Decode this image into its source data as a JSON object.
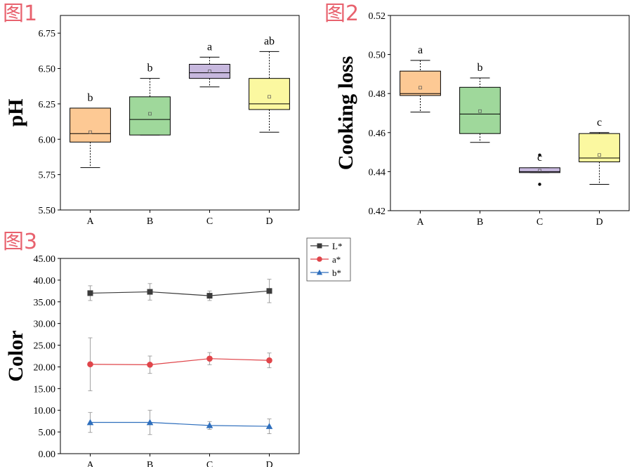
{
  "figure_labels": [
    "图1",
    "图2",
    "图3"
  ],
  "chart_data": [
    {
      "type": "box",
      "ylabel": "pH",
      "categories": [
        "A",
        "B",
        "C",
        "D"
      ],
      "ylim": [
        5.5,
        6.875
      ],
      "yticks": [
        "5.50",
        "5.75",
        "6.00",
        "6.25",
        "6.50",
        "6.75"
      ],
      "boxes": [
        {
          "category": "A",
          "min": 5.8,
          "q1": 5.98,
          "median": 6.04,
          "q3": 6.22,
          "max": 6.22,
          "mean": 6.05,
          "letter": "b",
          "color": "#fdc994"
        },
        {
          "category": "B",
          "min": 6.03,
          "q1": 6.03,
          "median": 6.14,
          "q3": 6.3,
          "max": 6.43,
          "mean": 6.18,
          "letter": "b",
          "color": "#9fd89b"
        },
        {
          "category": "C",
          "min": 6.37,
          "q1": 6.43,
          "median": 6.47,
          "q3": 6.53,
          "max": 6.58,
          "mean": 6.48,
          "letter": "a",
          "color": "#c7b8de"
        },
        {
          "category": "D",
          "min": 6.05,
          "q1": 6.21,
          "median": 6.25,
          "q3": 6.43,
          "max": 6.62,
          "mean": 6.3,
          "letter": "ab",
          "color": "#fbf8a0"
        }
      ],
      "outliers": []
    },
    {
      "type": "box",
      "ylabel": "Cooking loss",
      "categories": [
        "A",
        "B",
        "C",
        "D"
      ],
      "ylim": [
        0.42,
        0.52
      ],
      "yticks": [
        "0.42",
        "0.44",
        "0.46",
        "0.48",
        "0.50",
        "0.52"
      ],
      "boxes": [
        {
          "category": "A",
          "min": 0.4705,
          "q1": 0.479,
          "median": 0.48,
          "q3": 0.4915,
          "max": 0.497,
          "mean": 0.483,
          "letter": "a",
          "color": "#fdc994"
        },
        {
          "category": "B",
          "min": 0.455,
          "q1": 0.4595,
          "median": 0.4695,
          "q3": 0.4832,
          "max": 0.488,
          "mean": 0.471,
          "letter": "b",
          "color": "#9fd89b"
        },
        {
          "category": "C",
          "min": 0.4395,
          "q1": 0.4395,
          "median": 0.44,
          "q3": 0.442,
          "max": 0.442,
          "mean": 0.4405,
          "letter": "c",
          "color": "#c7b8de"
        },
        {
          "category": "D",
          "min": 0.4335,
          "q1": 0.445,
          "median": 0.447,
          "q3": 0.4595,
          "max": 0.46,
          "mean": 0.4485,
          "letter": "c",
          "color": "#fbf8a0"
        }
      ],
      "outliers": [
        {
          "category": "C",
          "value": 0.4485
        },
        {
          "category": "C",
          "value": 0.4335
        }
      ]
    },
    {
      "type": "line",
      "ylabel": "Color",
      "categories": [
        "A",
        "B",
        "C",
        "D"
      ],
      "ylim": [
        0,
        45
      ],
      "yticks": [
        "0.00",
        "5.00",
        "10.00",
        "15.00",
        "20.00",
        "25.00",
        "30.00",
        "35.00",
        "40.00",
        "45.00"
      ],
      "legend_position": "top-right-outside",
      "series": [
        {
          "name": "L*",
          "marker": "square",
          "color": "#3b3b3b",
          "values": [
            37.0,
            37.3,
            36.4,
            37.5
          ],
          "errors": [
            1.7,
            1.9,
            1.1,
            2.7
          ]
        },
        {
          "name": "a*",
          "marker": "circle",
          "color": "#e0454a",
          "values": [
            20.6,
            20.5,
            21.9,
            21.5
          ],
          "errors": [
            6.1,
            2.0,
            1.4,
            1.7
          ]
        },
        {
          "name": "b*",
          "marker": "triangle",
          "color": "#2f6fbd",
          "values": [
            7.2,
            7.2,
            6.5,
            6.3
          ],
          "errors": [
            2.3,
            2.8,
            0.9,
            1.7
          ]
        }
      ]
    }
  ]
}
